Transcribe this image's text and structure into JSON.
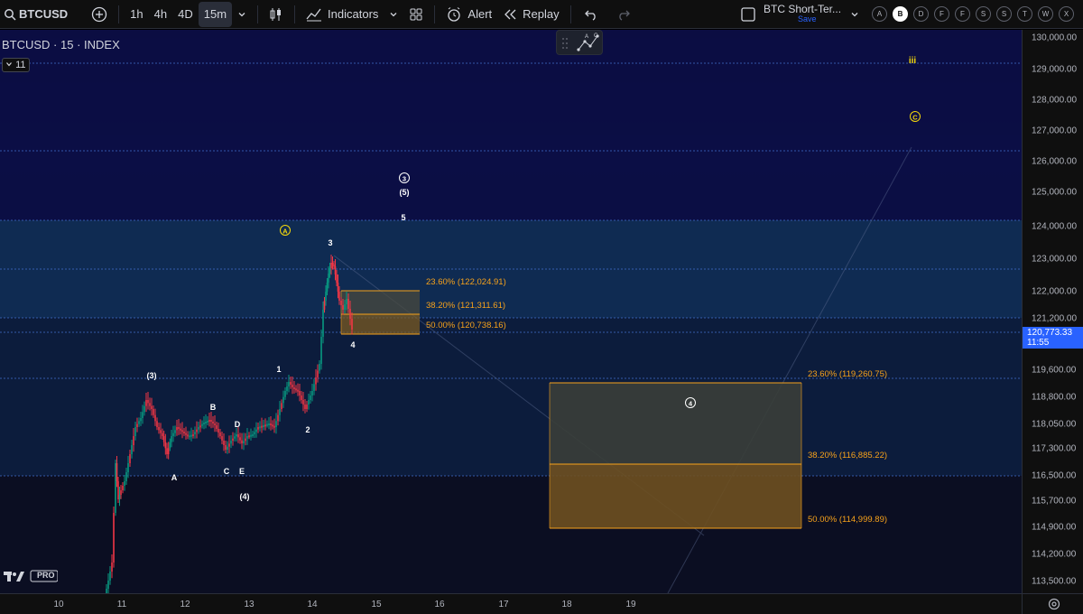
{
  "toolbar": {
    "symbol": "BTCUSD",
    "intervals": [
      "1h",
      "4h",
      "4D",
      "15m"
    ],
    "active_interval": "15m",
    "indicators_label": "Indicators",
    "alert_label": "Alert",
    "replay_label": "Replay",
    "layout_name": "BTC Short-Ter...",
    "save_label": "Save",
    "circle_buttons": [
      "A",
      "B",
      "D",
      "F",
      "F",
      "S",
      "S",
      "T",
      "W",
      "X"
    ],
    "selected_circle": "B"
  },
  "legend": {
    "title": "BTCUSD · 15 · INDEX",
    "count": "11"
  },
  "price_axis": {
    "ticks": [
      "130,000.00",
      "129,000.00",
      "128,000.00",
      "127,000.00",
      "126,000.00",
      "125,000.00",
      "124,000.00",
      "123,000.00",
      "122,000.00",
      "121,200.00",
      "119,600.00",
      "118,800.00",
      "118,050.00",
      "117,300.00",
      "116,500.00",
      "115,700.00",
      "114,900.00",
      "114,200.00",
      "113,500.00"
    ],
    "last_price": "120,773.33",
    "countdown": "11:55"
  },
  "time_axis": {
    "ticks": [
      "10",
      "11",
      "12",
      "13",
      "14",
      "15",
      "16",
      "17",
      "18",
      "19"
    ]
  },
  "annotations": {
    "fib_small": [
      "23.60% (122,024.91)",
      "38.20% (121,311.61)",
      "50.00% (120,738.16)"
    ],
    "fib_large": [
      "23.60% (119,260.75)",
      "38.20% (116,885.22)",
      "50.00% (114,999.89)"
    ],
    "waves": {
      "A_circle": "A",
      "C_circle": "C",
      "iii": "iii",
      "three_circle": "3",
      "five_paren": "(5)",
      "five": "5",
      "three": "3",
      "four": "4",
      "one": "1",
      "two": "2",
      "three_paren": "(3)",
      "four_paren": "(4)",
      "B": "B",
      "D": "D",
      "A": "A",
      "C": "C",
      "E": "E",
      "four_circle": "4"
    }
  },
  "colors": {
    "accent": "#2962ff",
    "fib": "#f7a21b",
    "wave_yellow": "#f5d90a",
    "up": "#089981",
    "down": "#f23645"
  },
  "logo_text": "PRO"
}
